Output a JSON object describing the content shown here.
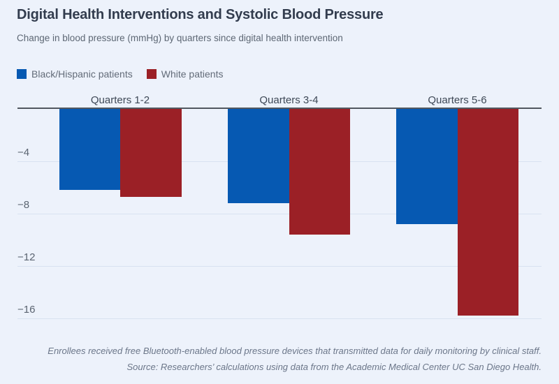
{
  "page": {
    "background": "#edf2fb"
  },
  "header": {
    "title": "Digital Health Interventions and Systolic Blood Pressure",
    "subtitle": "Change in blood pressure (mmHg) by quarters since digital health intervention"
  },
  "legend": {
    "items": [
      {
        "label": "Black/Hispanic patients",
        "color": "#0659b2"
      },
      {
        "label": "White patients",
        "color": "#9b2026"
      }
    ]
  },
  "chart_data": {
    "type": "bar",
    "title": "Digital Health Interventions and Systolic Blood Pressure",
    "subtitle": "Change in blood pressure (mmHg) by quarters since digital health intervention",
    "categories": [
      "Quarters 1-2",
      "Quarters 3-4",
      "Quarters 5-6"
    ],
    "series": [
      {
        "name": "Black/Hispanic patients",
        "color": "#0659b2",
        "values": [
          -6.2,
          -7.2,
          -8.8
        ]
      },
      {
        "name": "White patients",
        "color": "#9b2026",
        "values": [
          -6.7,
          -9.6,
          -15.8
        ]
      }
    ],
    "ylabel": "Change in blood pressure (mmHg)",
    "yticks": [
      -4,
      -8,
      -12,
      -16
    ],
    "ylim": [
      -17,
      0
    ],
    "baseline": 0,
    "grid": true,
    "legend_position": "top-left",
    "colors": {
      "gridline": "#d8e2f0",
      "zero_line": "#51575f",
      "tick_text": "#5b6471",
      "category_text": "#3e4856"
    }
  },
  "footer": {
    "note": "Enrollees received free Bluetooth-enabled blood pressure devices that transmitted data for daily monitoring by clinical staff.",
    "source": "Source: Researchers’ calculations using data from the Academic Medical Center UC San Diego Health."
  }
}
